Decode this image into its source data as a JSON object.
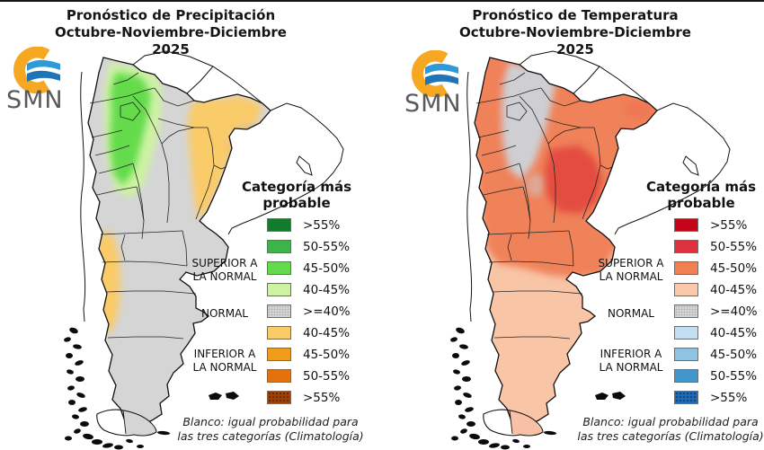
{
  "panels": [
    {
      "key": "precipitation",
      "title_line1": "Pronóstico de Precipitación",
      "title_line2": "Octubre-Noviembre-Diciembre 2025",
      "logo_text": "SMN",
      "legend_title_line1": "Categoría más",
      "legend_title_line2": "probable",
      "legend_items": [
        {
          "label": ">55%",
          "color": "#127C2C",
          "texture": null,
          "category": "superior"
        },
        {
          "label": "50-55%",
          "color": "#3CB449",
          "texture": null,
          "category": "superior"
        },
        {
          "label": "45-50%",
          "color": "#63DB4C",
          "texture": null,
          "category": "superior"
        },
        {
          "label": "40-45%",
          "color": "#CDF3A2",
          "texture": null,
          "category": "superior"
        },
        {
          "label": ">=40%",
          "color": "#D5D5D5",
          "texture": "stipple",
          "category": "normal"
        },
        {
          "label": "40-45%",
          "color": "#FACB69",
          "texture": null,
          "category": "inferior"
        },
        {
          "label": "45-50%",
          "color": "#F09D1C",
          "texture": null,
          "category": "inferior"
        },
        {
          "label": "50-55%",
          "color": "#E3720E",
          "texture": null,
          "category": "inferior"
        },
        {
          "label": ">55%",
          "color": "#9D4107",
          "texture": "speckle",
          "category": "inferior"
        }
      ],
      "category_labels": [
        {
          "line1": "SUPERIOR A",
          "line2": "LA NORMAL"
        },
        {
          "line1": "NORMAL",
          "line2": ""
        },
        {
          "line1": "INFERIOR A",
          "line2": "LA NORMAL"
        }
      ],
      "footnote_line1": "Blanco: igual probabilidad para",
      "footnote_line2": "las tres categorías (Climatología)",
      "map_regions": {
        "base": "#D5D5D5",
        "nw_fringe": "#CDF3A2",
        "nw_core": "#63DB4C",
        "east_band": "#FACB69",
        "east_deep": "#F0A02A",
        "west_band": "#FACB69",
        "tierra_del_fuego": "#D5D5D5"
      }
    },
    {
      "key": "temperature",
      "title_line1": "Pronóstico de Temperatura",
      "title_line2": "Octubre-Noviembre-Diciembre 2025",
      "logo_text": "SMN",
      "legend_title_line1": "Categoría más",
      "legend_title_line2": "probable",
      "legend_items": [
        {
          "label": ">55%",
          "color": "#C40519",
          "texture": null,
          "category": "superior"
        },
        {
          "label": "50-55%",
          "color": "#DE3140",
          "texture": null,
          "category": "superior"
        },
        {
          "label": "45-50%",
          "color": "#F08050",
          "texture": null,
          "category": "superior"
        },
        {
          "label": "40-45%",
          "color": "#FAC9AC",
          "texture": null,
          "category": "superior"
        },
        {
          "label": ">=40%",
          "color": "#D5D5D5",
          "texture": "stipple",
          "category": "normal"
        },
        {
          "label": "40-45%",
          "color": "#C3DEF0",
          "texture": null,
          "category": "inferior"
        },
        {
          "label": "45-50%",
          "color": "#90C2E2",
          "texture": null,
          "category": "inferior"
        },
        {
          "label": "50-55%",
          "color": "#4196CE",
          "texture": null,
          "category": "inferior"
        },
        {
          "label": ">55%",
          "color": "#1F6AB6",
          "texture": "speckle",
          "category": "inferior"
        }
      ],
      "category_labels": [
        {
          "line1": "SUPERIOR A",
          "line2": "LA NORMAL"
        },
        {
          "line1": "NORMAL",
          "line2": ""
        },
        {
          "line1": "INFERIOR A",
          "line2": "LA NORMAL"
        }
      ],
      "footnote_line1": "Blanco: igual probabilidad para",
      "footnote_line2": "las tres categorías (Climatología)",
      "map_regions": {
        "base": "#F9C5A7",
        "north": "#F0825A",
        "nw_gray": "#CFCFD3",
        "core": "#E2463C",
        "chaco_patch": "#ED6A4E",
        "misiones_patch": "#ED6A4E",
        "cuyo_patch": "#C9CDD2",
        "tierra_del_fuego": "#F8C0A4"
      }
    }
  ]
}
